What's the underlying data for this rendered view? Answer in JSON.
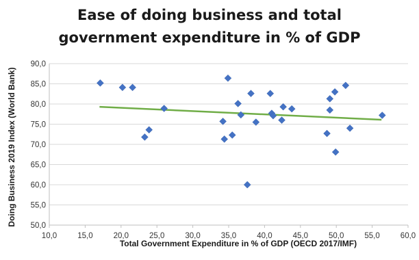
{
  "chart_data": {
    "type": "scatter",
    "title_lines": [
      "Ease of doing business and total",
      "government expenditure in % of GDP"
    ],
    "xlabel": "Total Government Expenditure in % of GDP (OECD 2017/IMF)",
    "ylabel": "Doing Business 2019 Index (World Bank)",
    "xlim": [
      10,
      60
    ],
    "ylim": [
      50,
      90
    ],
    "x_ticks": [
      "10,0",
      "15,0",
      "20,0",
      "25,0",
      "30,0",
      "35,0",
      "40,0",
      "45,0",
      "50,0",
      "55,0",
      "60,0"
    ],
    "y_ticks": [
      "50,0",
      "55,0",
      "60,0",
      "65,0",
      "70,0",
      "75,0",
      "80,0",
      "85,0",
      "90,0"
    ],
    "grid": "horizontal",
    "legend": "none",
    "marker_color": "#4472C4",
    "trendline_color": "#70AD47",
    "trendline": {
      "x": [
        17.0,
        56.3
      ],
      "y": [
        79.3,
        76.1
      ]
    },
    "points": [
      {
        "x": 17.1,
        "y": 85.2
      },
      {
        "x": 20.2,
        "y": 84.1
      },
      {
        "x": 21.6,
        "y": 84.1
      },
      {
        "x": 23.3,
        "y": 71.8
      },
      {
        "x": 23.9,
        "y": 73.6
      },
      {
        "x": 26.0,
        "y": 78.9
      },
      {
        "x": 34.2,
        "y": 75.7
      },
      {
        "x": 34.4,
        "y": 71.3
      },
      {
        "x": 34.9,
        "y": 86.4
      },
      {
        "x": 35.5,
        "y": 72.3
      },
      {
        "x": 36.3,
        "y": 80.1
      },
      {
        "x": 36.7,
        "y": 77.3
      },
      {
        "x": 37.6,
        "y": 60.0
      },
      {
        "x": 38.1,
        "y": 82.6
      },
      {
        "x": 38.8,
        "y": 75.5
      },
      {
        "x": 40.8,
        "y": 82.6
      },
      {
        "x": 41.0,
        "y": 77.7
      },
      {
        "x": 41.2,
        "y": 77.1
      },
      {
        "x": 42.4,
        "y": 76.0
      },
      {
        "x": 42.6,
        "y": 79.3
      },
      {
        "x": 43.8,
        "y": 78.8
      },
      {
        "x": 48.7,
        "y": 72.7
      },
      {
        "x": 49.1,
        "y": 81.3
      },
      {
        "x": 49.1,
        "y": 78.5
      },
      {
        "x": 49.8,
        "y": 83.0
      },
      {
        "x": 49.9,
        "y": 68.1
      },
      {
        "x": 51.3,
        "y": 84.6
      },
      {
        "x": 51.9,
        "y": 74.0
      },
      {
        "x": 56.4,
        "y": 77.2
      }
    ]
  }
}
